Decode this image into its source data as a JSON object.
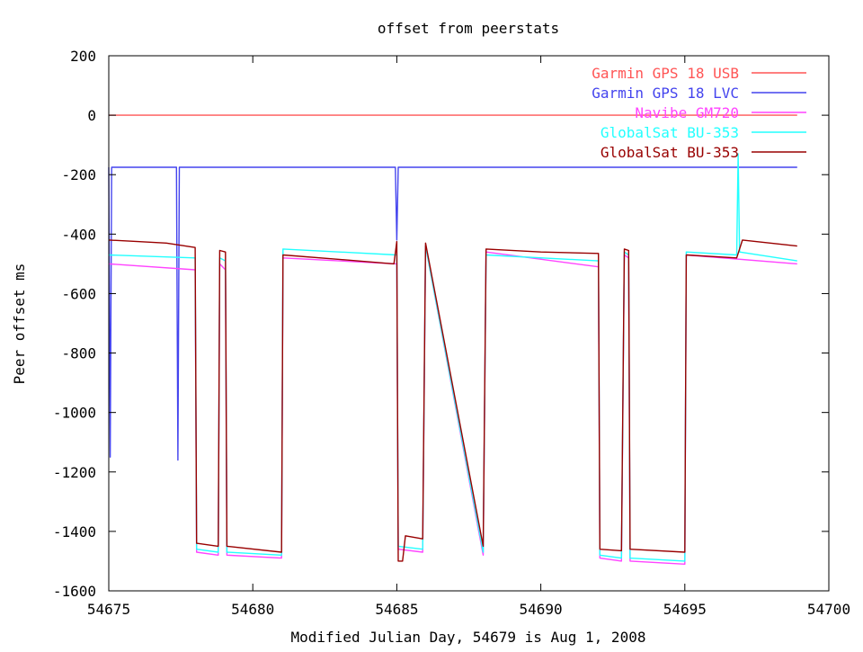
{
  "chart_data": {
    "type": "line",
    "title": "offset from peerstats",
    "xlabel": "Modified Julian Day, 54679 is Aug 1, 2008",
    "ylabel": "Peer offset ms",
    "xlim": [
      54675,
      54700
    ],
    "ylim": [
      -1600,
      200
    ],
    "x_ticks": [
      54675,
      54680,
      54685,
      54690,
      54695,
      54700
    ],
    "y_ticks": [
      200,
      0,
      -200,
      -400,
      -600,
      -800,
      -1000,
      -1200,
      -1400,
      -1600
    ],
    "grid": false,
    "legend_position": "top-right",
    "series": [
      {
        "name": "Garmin GPS 18 USB",
        "color": "#ff5555",
        "x": [
          54675.0,
          54678.0,
          54681.0,
          54684.0,
          54687.0,
          54690.0,
          54693.0,
          54696.0,
          54698.9
        ],
        "y": [
          0,
          0,
          0,
          0,
          0,
          0,
          0,
          0,
          0
        ]
      },
      {
        "name": "Garmin GPS 18 LVC",
        "color": "#4444ee",
        "x": [
          54675.0,
          54675.05,
          54675.1,
          54677.35,
          54677.4,
          54677.45,
          54684.95,
          54685.0,
          54685.05,
          54688.0,
          54692.0,
          54696.0,
          54698.9
        ],
        "y": [
          -175,
          -1150,
          -175,
          -175,
          -1160,
          -175,
          -175,
          -420,
          -175,
          -175,
          -175,
          -175,
          -175
        ]
      },
      {
        "name": "Navibe GM720",
        "color": "#ff44ff",
        "x": [
          54675.0,
          54678.0,
          54678.05,
          54678.8,
          54678.85,
          54679.05,
          54679.1,
          54681.0,
          54681.05,
          54685.0,
          54685.05,
          54685.9,
          54686.0,
          54688.0,
          54688.1,
          54692.0,
          54692.05,
          54692.8,
          54692.9,
          54693.05,
          54693.1,
          54695.0,
          54695.05,
          54698.9
        ],
        "y": [
          -500,
          -520,
          -1470,
          -1480,
          -500,
          -520,
          -1480,
          -1490,
          -480,
          -500,
          -1460,
          -1470,
          -440,
          -1480,
          -460,
          -510,
          -1490,
          -1500,
          -470,
          -480,
          -1500,
          -1510,
          -470,
          -500
        ]
      },
      {
        "name": "GlobalSat BU-353",
        "color": "#22ffff",
        "x": [
          54675.0,
          54678.0,
          54678.05,
          54678.8,
          54678.85,
          54679.05,
          54679.1,
          54681.0,
          54681.05,
          54685.0,
          54685.05,
          54685.9,
          54686.0,
          54688.0,
          54688.1,
          54692.0,
          54692.05,
          54692.8,
          54692.9,
          54693.05,
          54693.1,
          54695.0,
          54695.05,
          54696.8,
          54696.85,
          54696.9,
          54698.9
        ],
        "y": [
          -470,
          -480,
          -1460,
          -1470,
          -480,
          -490,
          -1470,
          -1480,
          -450,
          -470,
          -1450,
          -1460,
          -440,
          -1470,
          -470,
          -490,
          -1480,
          -1490,
          -460,
          -470,
          -1490,
          -1500,
          -460,
          -470,
          -130,
          -460,
          -490
        ]
      },
      {
        "name": "GlobalSat BU-353",
        "color": "#990000",
        "x": [
          54675.0,
          54676.0,
          54677.0,
          54678.0,
          54678.05,
          54678.8,
          54678.85,
          54679.05,
          54679.1,
          54681.0,
          54681.05,
          54683.0,
          54684.9,
          54685.0,
          54685.05,
          54685.2,
          54685.3,
          54685.9,
          54686.0,
          54688.0,
          54688.1,
          54690.0,
          54692.0,
          54692.05,
          54692.8,
          54692.9,
          54693.05,
          54693.1,
          54695.0,
          54695.05,
          54696.8,
          54697.0,
          54698.9
        ],
        "y": [
          -420,
          -425,
          -430,
          -445,
          -1440,
          -1450,
          -455,
          -460,
          -1450,
          -1470,
          -470,
          -485,
          -500,
          -425,
          -1500,
          -1500,
          -1415,
          -1425,
          -430,
          -1450,
          -450,
          -460,
          -465,
          -1460,
          -1465,
          -450,
          -455,
          -1460,
          -1470,
          -470,
          -480,
          -420,
          -440
        ]
      }
    ]
  }
}
